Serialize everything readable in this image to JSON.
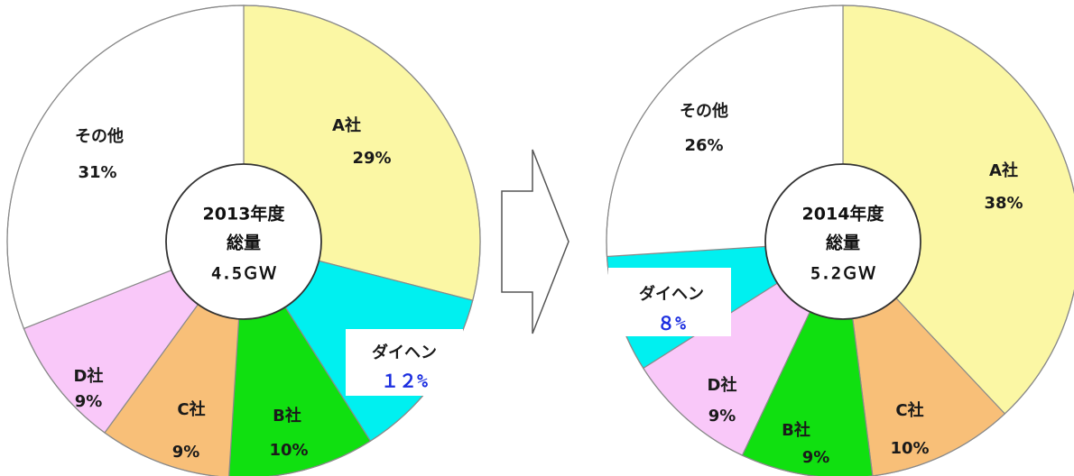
{
  "chart_data": [
    {
      "type": "pie",
      "center_label": [
        "2013年度",
        "総量",
        "4.5ＧＷ"
      ],
      "slices": [
        {
          "label": "A社",
          "value": 29,
          "value_label": "29%",
          "color": "#fbf7a4"
        },
        {
          "label": "ダイヘン",
          "value": 12,
          "value_label": "１２%",
          "color": "#00f0f0"
        },
        {
          "label": "B社",
          "value": 10,
          "value_label": "10%",
          "color": "#10e010"
        },
        {
          "label": "C社",
          "value": 9,
          "value_label": "9%",
          "color": "#f8bf78"
        },
        {
          "label": "D社",
          "value": 9,
          "value_label": "9%",
          "color": "#f9c8f9"
        },
        {
          "label": "その他",
          "value": 31,
          "value_label": "31%",
          "color": "#ffffff"
        }
      ]
    },
    {
      "type": "pie",
      "center_label": [
        "2014年度",
        "総量",
        "5.2ＧＷ"
      ],
      "slices": [
        {
          "label": "A社",
          "value": 38,
          "value_label": "38%",
          "color": "#fbf7a4"
        },
        {
          "label": "C社",
          "value": 10,
          "value_label": "10%",
          "color": "#f8bf78"
        },
        {
          "label": "B社",
          "value": 9,
          "value_label": "9%",
          "color": "#10e010"
        },
        {
          "label": "D社",
          "value": 9,
          "value_label": "9%",
          "color": "#f9c8f9"
        },
        {
          "label": "ダイヘン",
          "value": 8,
          "value_label": "８%",
          "color": "#00f0f0"
        },
        {
          "label": "その他",
          "value": 26,
          "value_label": "26%",
          "color": "#ffffff"
        }
      ]
    }
  ],
  "arrow_icon": "right-arrow-icon"
}
